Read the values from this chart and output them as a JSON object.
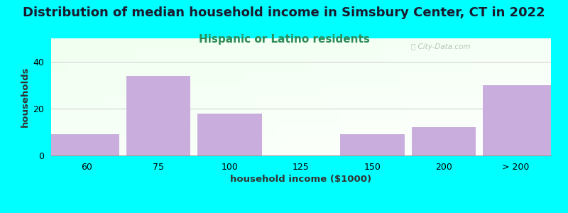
{
  "title": "Distribution of median household income in Simsbury Center, CT in 2022",
  "subtitle": "Hispanic or Latino residents",
  "xlabel": "household income ($1000)",
  "ylabel": "households",
  "background_color": "#00ffff",
  "bar_color": "#c9aedd",
  "categories": [
    "60",
    "75",
    "100",
    "125",
    "150",
    "200",
    "> 200"
  ],
  "values": [
    9,
    34,
    18,
    0,
    9,
    12,
    30
  ],
  "ylim": [
    0,
    50
  ],
  "yticks": [
    0,
    20,
    40
  ],
  "title_fontsize": 13,
  "subtitle_fontsize": 11,
  "axis_label_fontsize": 9.5,
  "tick_fontsize": 9,
  "title_color": "#1a1a2e",
  "subtitle_color": "#2e8b57",
  "watermark_text": "ⓘ City-Data.com",
  "watermark_color": "#b0b8b0"
}
